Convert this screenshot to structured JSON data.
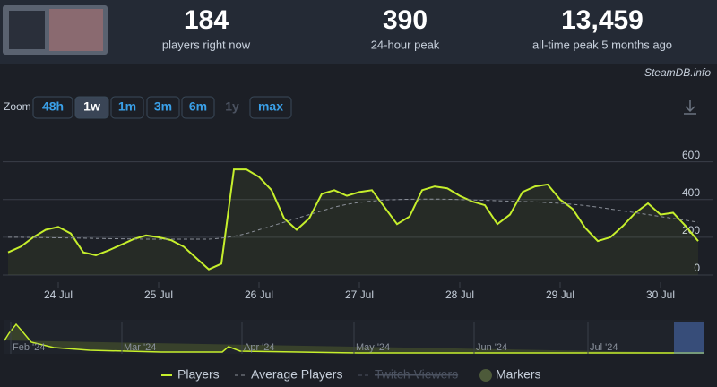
{
  "stats": [
    {
      "value": "184",
      "label": "players right now"
    },
    {
      "value": "390",
      "label": "24-hour peak"
    },
    {
      "value": "13,459",
      "label": "all-time peak 5 months ago"
    }
  ],
  "brand": "SteamDB.info",
  "zoom": {
    "label": "Zoom",
    "buttons": [
      "48h",
      "1w",
      "1m",
      "3m",
      "6m",
      "1y",
      "max"
    ]
  },
  "navigator_labels": [
    "Feb '24",
    "Mar '24",
    "Apr '24",
    "May '24",
    "Jun '24",
    "Jul '24"
  ],
  "chart_data": {
    "type": "line",
    "categories": [
      null,
      null,
      null,
      null,
      "24 Jul",
      null,
      null,
      null,
      null,
      null,
      null,
      null,
      "25 Jul",
      null,
      null,
      null,
      null,
      null,
      null,
      null,
      "26 Jul",
      null,
      null,
      null,
      null,
      null,
      null,
      null,
      "27 Jul",
      null,
      null,
      null,
      null,
      null,
      null,
      null,
      "28 Jul",
      null,
      null,
      null,
      null,
      null,
      null,
      null,
      "29 Jul",
      null,
      null,
      null,
      null,
      null,
      null,
      null,
      "30 Jul",
      null,
      null,
      null
    ],
    "series": [
      {
        "name": "Players",
        "color": "#c6ef2c",
        "values": [
          120,
          150,
          200,
          240,
          255,
          220,
          120,
          105,
          130,
          160,
          190,
          210,
          200,
          185,
          150,
          90,
          30,
          60,
          560,
          560,
          520,
          450,
          300,
          240,
          300,
          430,
          450,
          420,
          440,
          450,
          360,
          270,
          310,
          450,
          470,
          460,
          420,
          390,
          370,
          270,
          320,
          440,
          470,
          480,
          400,
          350,
          250,
          180,
          200,
          260,
          330,
          380,
          320,
          330,
          260,
          180
        ]
      },
      {
        "name": "Average Players",
        "color": "#8a8f98",
        "values": [
          200,
          200,
          199,
          198,
          197,
          196,
          195,
          194,
          193,
          192,
          191,
          190,
          190,
          190,
          190,
          190,
          190,
          195,
          205,
          220,
          240,
          260,
          280,
          300,
          320,
          340,
          360,
          375,
          385,
          392,
          398,
          400,
          402,
          403,
          403,
          402,
          400,
          398,
          396,
          394,
          392,
          390,
          388,
          384,
          380,
          375,
          368,
          360,
          350,
          340,
          330,
          320,
          310,
          300,
          290,
          280
        ]
      }
    ],
    "legend": [
      "Players",
      "Average Players",
      "Twitch Viewers",
      "Markers"
    ],
    "ylim": [
      0,
      760
    ],
    "yticks": [
      0,
      200,
      400,
      600
    ],
    "grid": true
  }
}
